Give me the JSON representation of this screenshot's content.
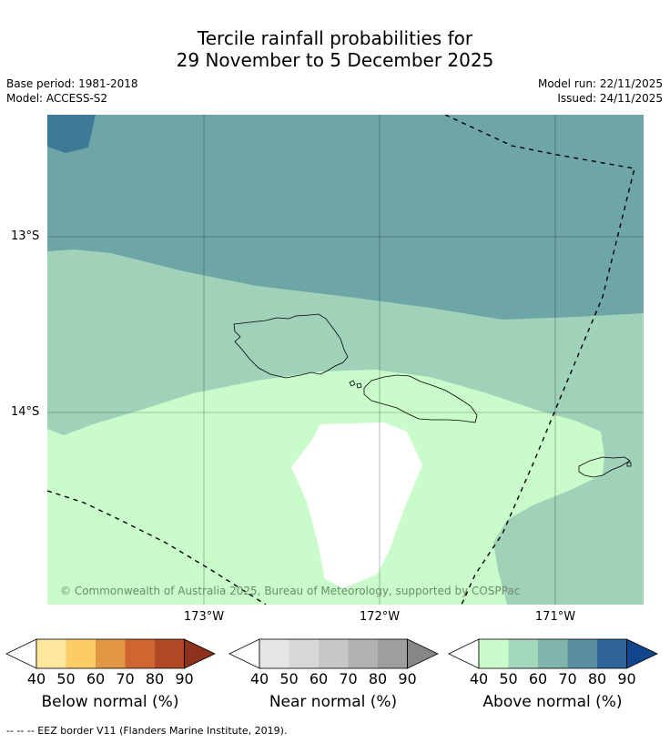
{
  "title": {
    "line1": "Tercile rainfall probabilities for",
    "line2": "29 November to 5 December 2025"
  },
  "meta": {
    "base_period": "Base period: 1981-2018",
    "model": "Model: ACCESS-S2",
    "model_run": "Model run: 22/11/2025",
    "issued": "Issued: 24/11/2025"
  },
  "map": {
    "lat_labels": [
      "13°S",
      "14°S"
    ],
    "lon_labels": [
      "173°W",
      "172°W",
      "171°W"
    ],
    "copyright": "© Commonwealth of Australia 2025, Bureau of Meteorology, supported by COSPPac",
    "colors": {
      "above_50": "#cafccb",
      "above_60": "#9fd2b9",
      "above_70": "#6ea5a7",
      "above_80": "#3e7a98",
      "blank": "#ffffff"
    }
  },
  "colorbars": [
    {
      "label": "Below normal (%)",
      "ticks": [
        "40",
        "50",
        "60",
        "70",
        "80",
        "90"
      ],
      "colors": [
        "#ffffff",
        "#fee79c",
        "#fccd66",
        "#e29745",
        "#cf6531",
        "#b04827",
        "#8e321d"
      ]
    },
    {
      "label": "Near normal (%)",
      "ticks": [
        "40",
        "50",
        "60",
        "70",
        "80",
        "90"
      ],
      "colors": [
        "#ffffff",
        "#e6e6e6",
        "#d7d7d7",
        "#c6c6c6",
        "#b2b2b2",
        "#9e9e9e",
        "#868686"
      ]
    },
    {
      "label": "Above normal (%)",
      "ticks": [
        "40",
        "50",
        "60",
        "70",
        "80",
        "90"
      ],
      "colors": [
        "#ffffff",
        "#cafccb",
        "#a4d8bc",
        "#7fb5ab",
        "#5a8fa0",
        "#306598",
        "#11468c"
      ]
    }
  ],
  "footer": "-- -- -- EEZ border V11 (Flanders Marine Institute, 2019)."
}
